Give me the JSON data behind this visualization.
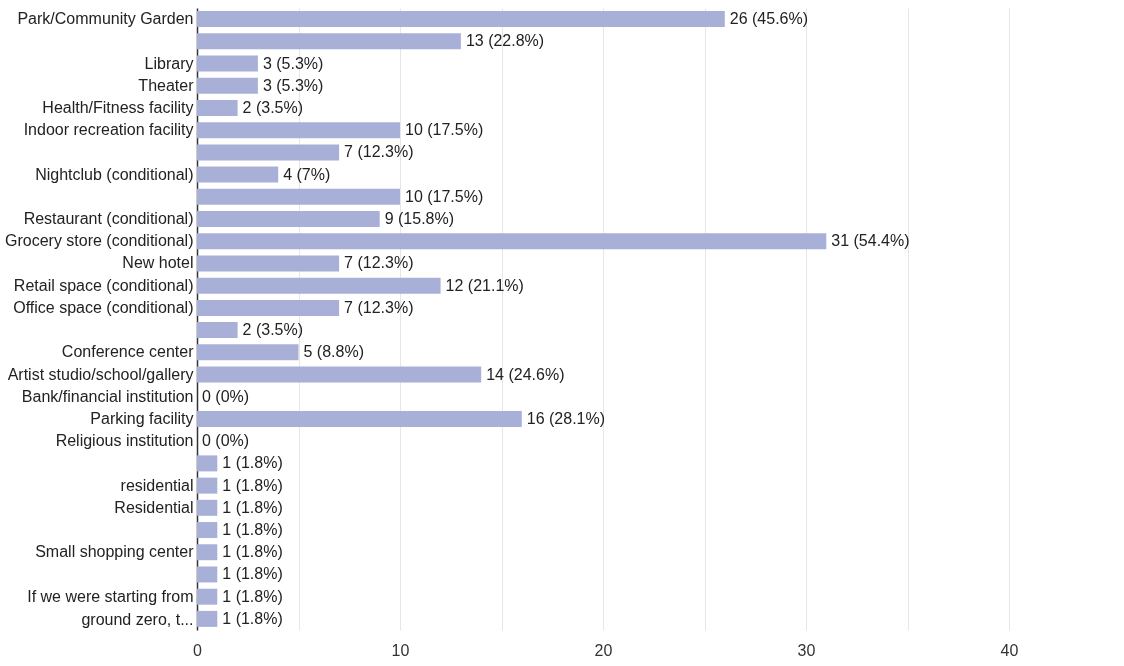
{
  "chart_data": {
    "type": "bar",
    "orientation": "horizontal",
    "color": "#a8b0d8",
    "grid": "x",
    "categories": [
      "Park/Community Garden",
      null,
      "Library",
      "Theater",
      "Health/Fitness facility",
      "Indoor recreation facility",
      null,
      "Nightclub (conditional)",
      null,
      "Restaurant (conditional)",
      "Grocery store (conditional)",
      "New hotel",
      "Retail space (conditional)",
      "Office space (conditional)",
      null,
      "Conference center",
      "Artist studio/school/gallery",
      "Bank/financial institution",
      "Parking facility",
      "Religious institution",
      null,
      "residential",
      "Residential",
      null,
      "Small shopping center",
      null,
      "If we were starting from ground zero, t...",
      null
    ],
    "values": [
      26,
      13,
      3,
      3,
      2,
      10,
      7,
      4,
      10,
      9,
      31,
      7,
      12,
      7,
      2,
      5,
      14,
      0,
      16,
      0,
      1,
      1,
      1,
      1,
      1,
      1,
      1,
      1
    ],
    "value_labels": [
      "26 (45.6%)",
      "13 (22.8%)",
      "3 (5.3%)",
      "3 (5.3%)",
      "2 (3.5%)",
      "10 (17.5%)",
      "7 (12.3%)",
      "4 (7%)",
      "10 (17.5%)",
      "9 (15.8%)",
      "31 (54.4%)",
      "7 (12.3%)",
      "12 (21.1%)",
      "7 (12.3%)",
      "2 (3.5%)",
      "5 (8.8%)",
      "14 (24.6%)",
      "0 (0%)",
      "16 (28.1%)",
      "0 (0%)",
      "1 (1.8%)",
      "1 (1.8%)",
      "1 (1.8%)",
      "1 (1.8%)",
      "1 (1.8%)",
      "1 (1.8%)",
      "1 (1.8%)",
      "1 (1.8%)"
    ],
    "xlim": [
      0,
      40
    ],
    "xticks": [
      0,
      {
        "value": 5,
        "label": null
      },
      10,
      {
        "value": 15,
        "label": null
      },
      20,
      {
        "value": 25,
        "label": null
      },
      30,
      {
        "value": 35,
        "label": null
      },
      40
    ]
  }
}
